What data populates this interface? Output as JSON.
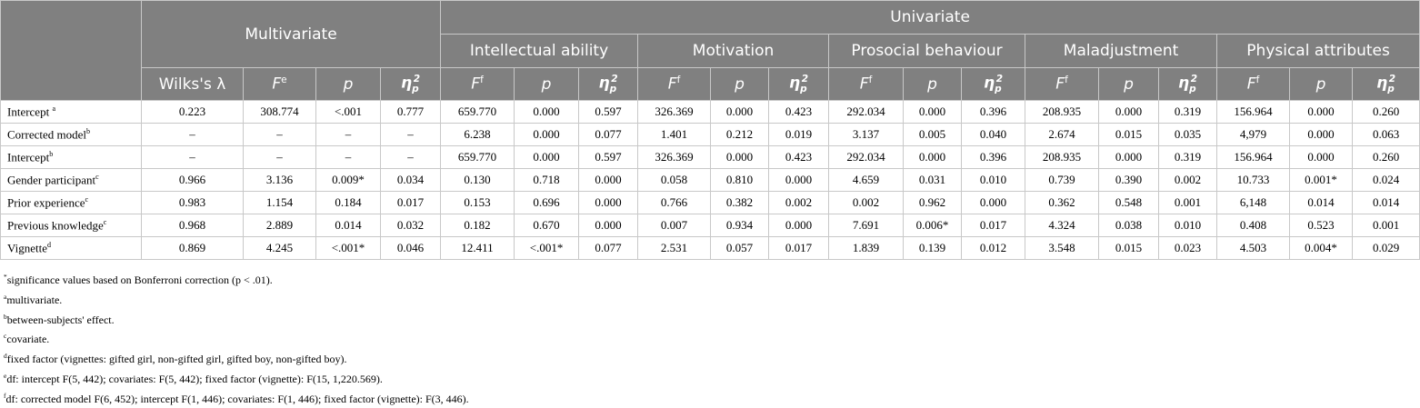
{
  "table": {
    "header": {
      "multivariate": "Multivariate",
      "univariate": "Univariate",
      "groups": [
        "Intellectual ability",
        "Motivation",
        "Prosocial behaviour",
        "Maladjustment",
        "Physical attributes"
      ],
      "columns": [
        {
          "text": "Wilks's λ"
        },
        {
          "text": "F",
          "sup": "e"
        },
        {
          "text": "p"
        },
        {
          "text": "η",
          "sub": "p",
          "sup": "2"
        },
        {
          "text": "F",
          "sup": "f"
        },
        {
          "text": "p"
        },
        {
          "text": "η",
          "sub": "p",
          "sup": "2"
        },
        {
          "text": "F",
          "sup": "f"
        },
        {
          "text": "p"
        },
        {
          "text": "η",
          "sub": "p",
          "sup": "2"
        },
        {
          "text": "F",
          "sup": "f"
        },
        {
          "text": "p"
        },
        {
          "text": "η",
          "sub": "p",
          "sup": "2"
        },
        {
          "text": "F",
          "sup": "f"
        },
        {
          "text": "p"
        },
        {
          "text": "η",
          "sub": "p",
          "sup": "2"
        },
        {
          "text": "F",
          "sup": "f"
        },
        {
          "text": "p"
        },
        {
          "text": "η",
          "sub": "p",
          "sup": "2"
        }
      ]
    },
    "rows": [
      {
        "label": "Intercept ",
        "sup": "a",
        "cells": [
          "0.223",
          "308.774",
          "<.001",
          "0.777",
          "659.770",
          "0.000",
          "0.597",
          "326.369",
          "0.000",
          "0.423",
          "292.034",
          "0.000",
          "0.396",
          "208.935",
          "0.000",
          "0.319",
          "156.964",
          "0.000",
          "0.260"
        ]
      },
      {
        "label": "Corrected model",
        "sup": "b",
        "cells": [
          "–",
          "–",
          "–",
          "–",
          "6.238",
          "0.000",
          "0.077",
          "1.401",
          "0.212",
          "0.019",
          "3.137",
          "0.005",
          "0.040",
          "2.674",
          "0.015",
          "0.035",
          "4,979",
          "0.000",
          "0.063"
        ]
      },
      {
        "label": "Intercept",
        "sup": "b",
        "cells": [
          "–",
          "–",
          "–",
          "–",
          "659.770",
          "0.000",
          "0.597",
          "326.369",
          "0.000",
          "0.423",
          "292.034",
          "0.000",
          "0.396",
          "208.935",
          "0.000",
          "0.319",
          "156.964",
          "0.000",
          "0.260"
        ]
      },
      {
        "label": "Gender participant",
        "sup": "c",
        "cells": [
          "0.966",
          "3.136",
          "0.009*",
          "0.034",
          "0.130",
          "0.718",
          "0.000",
          "0.058",
          "0.810",
          "0.000",
          "4.659",
          "0.031",
          "0.010",
          "0.739",
          "0.390",
          "0.002",
          "10.733",
          "0.001*",
          "0.024"
        ]
      },
      {
        "label": "Prior experience",
        "sup": "c",
        "cells": [
          "0.983",
          "1.154",
          "0.184",
          "0.017",
          "0.153",
          "0.696",
          "0.000",
          "0.766",
          "0.382",
          "0.002",
          "0.002",
          "0.962",
          "0.000",
          "0.362",
          "0.548",
          "0.001",
          "6,148",
          "0.014",
          "0.014"
        ]
      },
      {
        "label": "Previous knowledge",
        "sup": "c",
        "cells": [
          "0.968",
          "2.889",
          "0.014",
          "0.032",
          "0.182",
          "0.670",
          "0.000",
          "0.007",
          "0.934",
          "0.000",
          "7.691",
          "0.006*",
          "0.017",
          "4.324",
          "0.038",
          "0.010",
          "0.408",
          "0.523",
          "0.001"
        ]
      },
      {
        "label": "Vignette",
        "sup": "d",
        "cells": [
          "0.869",
          "4.245",
          "<.001*",
          "0.046",
          "12.411",
          "<.001*",
          "0.077",
          "2.531",
          "0.057",
          "0.017",
          "1.839",
          "0.139",
          "0.012",
          "3.548",
          "0.015",
          "0.023",
          "4.503",
          "0.004*",
          "0.029"
        ]
      }
    ]
  },
  "footnotes": [
    {
      "mark": "*",
      "text": "significance values based on Bonferroni correction (p < .01)."
    },
    {
      "mark": "a",
      "text": "multivariate."
    },
    {
      "mark": "b",
      "text": "between-subjects' effect."
    },
    {
      "mark": "c",
      "text": "covariate."
    },
    {
      "mark": "d",
      "text": "fixed factor (vignettes: gifted girl, non-gifted girl, gifted boy, non-gifted boy)."
    },
    {
      "mark": "e",
      "text": "df: intercept F(5, 442); covariates: F(5, 442); fixed factor (vignette): F(15, 1,220.569)."
    },
    {
      "mark": "f",
      "text": "df: corrected model F(6, 452); intercept F(1, 446); covariates: F(1, 446); fixed factor (vignette): F(3, 446)."
    }
  ]
}
